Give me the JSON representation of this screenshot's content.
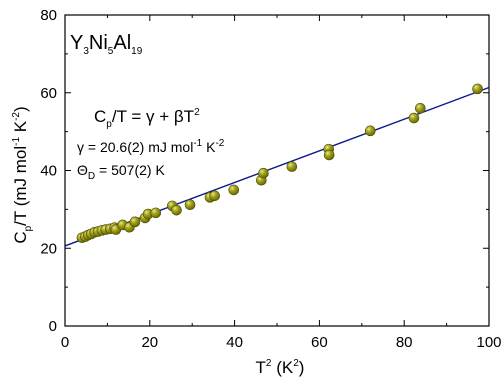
{
  "chart_data": {
    "type": "scatter",
    "compound": {
      "base": "Y",
      "s1": "3",
      "mid1": "Ni",
      "s2": "5",
      "mid2": "Al",
      "s3": "19"
    },
    "xlabel": {
      "base": "T",
      "sup": "2",
      "unit_open": " (K",
      "unit_sup": "2",
      "unit_close": ")"
    },
    "ylabel": {
      "pre": "C",
      "sub": "p",
      "mid": "/T (mJ mol",
      "sup1": "-1",
      "mid2": " K",
      "sup2": "-2",
      "post": ")"
    },
    "xlim": [
      0,
      100
    ],
    "ylim": [
      0,
      80
    ],
    "xticks": [
      0,
      20,
      40,
      60,
      80,
      100
    ],
    "yticks": [
      0,
      20,
      40,
      60,
      80
    ],
    "fit": {
      "intercept": 20.6,
      "slope": 0.4075,
      "x_range": [
        0,
        100
      ],
      "color": "#0c1a8f"
    },
    "marker_color": "#8a8a00",
    "annotations": {
      "equation": {
        "pre": "C",
        "sub": "p",
        "mid": "/T = γ + βT",
        "sup": "2"
      },
      "gamma": {
        "pre": "γ = 20.6(2) mJ mol",
        "sup1": "-1",
        "mid": " K",
        "sup2": "-2"
      },
      "theta": {
        "pre": "Θ",
        "sub": "D",
        "post": " = 507(2) K"
      }
    },
    "points": [
      [
        4.0,
        22.7
      ],
      [
        4.8,
        23.0
      ],
      [
        5.5,
        23.4
      ],
      [
        6.2,
        23.7
      ],
      [
        7.0,
        24.1
      ],
      [
        7.8,
        24.3
      ],
      [
        8.7,
        24.6
      ],
      [
        9.6,
        24.8
      ],
      [
        10.7,
        25.0
      ],
      [
        11.7,
        25.3
      ],
      [
        12.0,
        24.8
      ],
      [
        13.6,
        26.0
      ],
      [
        15.2,
        25.4
      ],
      [
        16.5,
        26.8
      ],
      [
        18.9,
        27.8
      ],
      [
        19.6,
        28.8
      ],
      [
        21.4,
        29.1
      ],
      [
        25.3,
        30.9
      ],
      [
        26.3,
        29.8
      ],
      [
        29.5,
        31.2
      ],
      [
        34.2,
        33.1
      ],
      [
        35.3,
        33.5
      ],
      [
        39.8,
        35.0
      ],
      [
        46.3,
        37.5
      ],
      [
        46.8,
        39.3
      ],
      [
        53.5,
        41.0
      ],
      [
        62.2,
        45.5
      ],
      [
        62.3,
        44.0
      ],
      [
        72.0,
        50.2
      ],
      [
        82.3,
        53.5
      ],
      [
        83.8,
        56.0
      ],
      [
        97.3,
        61.0
      ]
    ]
  }
}
